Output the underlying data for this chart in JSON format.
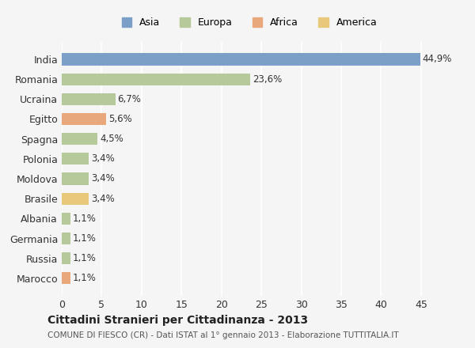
{
  "countries": [
    "India",
    "Romania",
    "Ucraina",
    "Egitto",
    "Spagna",
    "Polonia",
    "Moldova",
    "Brasile",
    "Albania",
    "Germania",
    "Russia",
    "Marocco"
  ],
  "values": [
    44.9,
    23.6,
    6.7,
    5.6,
    4.5,
    3.4,
    3.4,
    3.4,
    1.1,
    1.1,
    1.1,
    1.1
  ],
  "labels": [
    "44,9%",
    "23,6%",
    "6,7%",
    "5,6%",
    "4,5%",
    "3,4%",
    "3,4%",
    "3,4%",
    "1,1%",
    "1,1%",
    "1,1%",
    "1,1%"
  ],
  "colors": [
    "#7b9fc7",
    "#b5c99a",
    "#b5c99a",
    "#e8a87c",
    "#b5c99a",
    "#b5c99a",
    "#b5c99a",
    "#e8c97c",
    "#b5c99a",
    "#b5c99a",
    "#b5c99a",
    "#e8a87c"
  ],
  "legend_labels": [
    "Asia",
    "Europa",
    "Africa",
    "America"
  ],
  "legend_colors": [
    "#7b9fc7",
    "#b5c99a",
    "#e8a87c",
    "#e8c97c"
  ],
  "title": "Cittadini Stranieri per Cittadinanza - 2013",
  "subtitle": "COMUNE DI FIESCO (CR) - Dati ISTAT al 1° gennaio 2013 - Elaborazione TUTTITALIA.IT",
  "xlim": [
    0,
    47
  ],
  "xticks": [
    0,
    5,
    10,
    15,
    20,
    25,
    30,
    35,
    40,
    45
  ],
  "background_color": "#f5f5f5",
  "grid_color": "#ffffff"
}
